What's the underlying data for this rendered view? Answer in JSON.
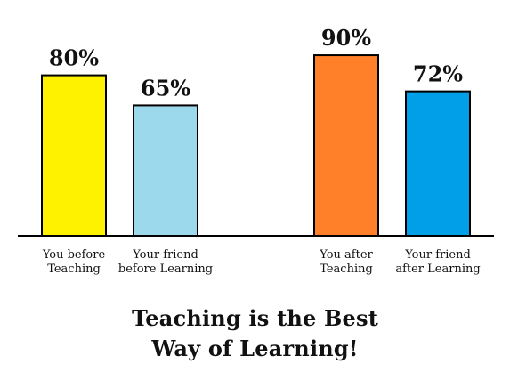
{
  "chart_data": {
    "type": "bar",
    "categories": [
      [
        "You before",
        "Teaching"
      ],
      [
        "Your friend",
        "before Learning"
      ],
      [
        "You after",
        "Teaching"
      ],
      [
        "Your friend",
        "after Learning"
      ]
    ],
    "values": [
      80,
      65,
      90,
      72
    ],
    "value_labels": [
      "80%",
      "65%",
      "90%",
      "72%"
    ],
    "colors": [
      "#fff200",
      "#9dd9ec",
      "#ff8028",
      "#009fe8"
    ],
    "title_lines": [
      "Teaching is the Best",
      "Way of Learning!"
    ],
    "xlabel": "",
    "ylabel": "",
    "ylim": [
      0,
      100
    ],
    "grid": false,
    "legend": "none"
  }
}
